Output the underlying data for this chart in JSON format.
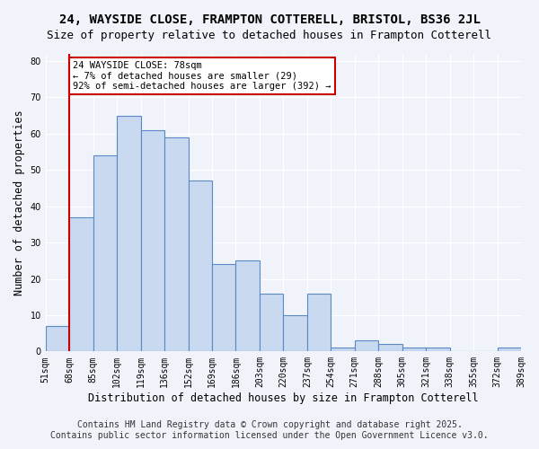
{
  "title1": "24, WAYSIDE CLOSE, FRAMPTON COTTERELL, BRISTOL, BS36 2JL",
  "title2": "Size of property relative to detached houses in Frampton Cotterell",
  "xlabel": "Distribution of detached houses by size in Frampton Cotterell",
  "ylabel": "Number of detached properties",
  "bins": [
    "51sqm",
    "68sqm",
    "85sqm",
    "102sqm",
    "119sqm",
    "136sqm",
    "152sqm",
    "169sqm",
    "186sqm",
    "203sqm",
    "220sqm",
    "237sqm",
    "254sqm",
    "271sqm",
    "288sqm",
    "305sqm",
    "321sqm",
    "338sqm",
    "355sqm",
    "372sqm",
    "389sqm"
  ],
  "values": [
    7,
    37,
    54,
    65,
    61,
    59,
    47,
    24,
    25,
    16,
    10,
    16,
    1,
    3,
    2,
    1,
    1,
    0,
    0,
    1
  ],
  "bar_color": "#c9d9f0",
  "bar_edge_color": "#5a8ac6",
  "bar_edge_width": 0.8,
  "vline_x": 1.0,
  "vline_color": "#cc0000",
  "annotation_title": "24 WAYSIDE CLOSE: 78sqm",
  "annotation_line1": "← 7% of detached houses are smaller (29)",
  "annotation_line2": "92% of semi-detached houses are larger (392) →",
  "annotation_box_color": "#ffffff",
  "annotation_box_edge": "#cc0000",
  "ylim": [
    0,
    82
  ],
  "yticks": [
    0,
    10,
    20,
    30,
    40,
    50,
    60,
    70,
    80
  ],
  "footer1": "Contains HM Land Registry data © Crown copyright and database right 2025.",
  "footer2": "Contains public sector information licensed under the Open Government Licence v3.0.",
  "bg_color": "#f0f4fa",
  "grid_color": "#ffffff",
  "title1_fontsize": 10,
  "title2_fontsize": 9,
  "xlabel_fontsize": 8.5,
  "ylabel_fontsize": 8.5,
  "tick_fontsize": 7,
  "footer_fontsize": 7,
  "annotation_fontsize": 7.5
}
